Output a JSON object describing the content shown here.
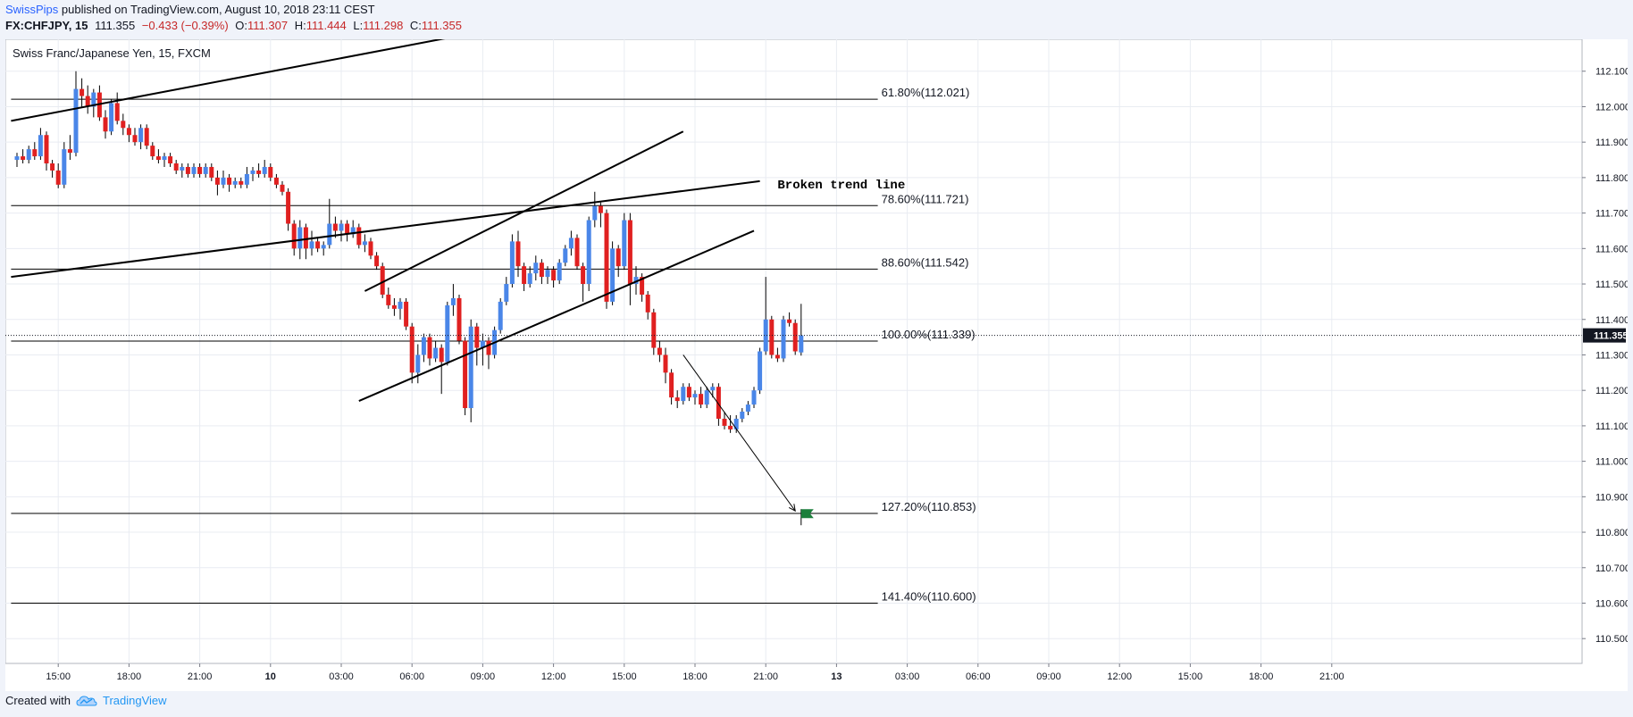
{
  "header": {
    "author": "SwissPips",
    "published": "published on TradingView.com, August 10, 2018 23:11 CEST",
    "ticker": "FX:CHFJPY, 15",
    "last": "111.355",
    "change": "−0.433 (−0.39%)",
    "o_label": "O:",
    "o_value": "111.307",
    "h_label": "H:",
    "h_value": "111.444",
    "l_label": "L:",
    "l_value": "111.298",
    "c_label": "C:",
    "c_value": "111.355"
  },
  "footer": {
    "created_with": "Created with",
    "brand": "TradingView",
    "logo_icon": "tradingview-cloud-icon"
  },
  "colors": {
    "up": "#4a86e8",
    "down": "#e02020",
    "grid": "#e9ecf2",
    "line": "#000000",
    "flag": "#1b7f3b",
    "price_tag": "#131722"
  },
  "chart_data": {
    "type": "candlestick",
    "title": "Swiss Franc/Japanese Yen, 15, FXCM",
    "xlabel": "",
    "ylabel": "",
    "y_range": [
      110.43,
      112.19
    ],
    "y_ticks": [
      "112.100",
      "112.000",
      "111.900",
      "111.800",
      "111.700",
      "111.600",
      "111.500",
      "111.400",
      "111.300",
      "111.200",
      "111.100",
      "111.000",
      "110.900",
      "110.800",
      "110.700",
      "110.600",
      "110.500"
    ],
    "x_ticks": [
      {
        "label": "15:00",
        "slot": 7
      },
      {
        "label": "18:00",
        "slot": 19
      },
      {
        "label": "21:00",
        "slot": 31
      },
      {
        "label": "10",
        "slot": 43
      },
      {
        "label": "03:00",
        "slot": 55
      },
      {
        "label": "06:00",
        "slot": 67
      },
      {
        "label": "09:00",
        "slot": 79
      },
      {
        "label": "12:00",
        "slot": 91
      },
      {
        "label": "15:00",
        "slot": 103
      },
      {
        "label": "18:00",
        "slot": 115
      },
      {
        "label": "21:00",
        "slot": 127
      },
      {
        "label": "13",
        "slot": 139
      },
      {
        "label": "03:00",
        "slot": 151
      },
      {
        "label": "06:00",
        "slot": 163
      },
      {
        "label": "09:00",
        "slot": 175
      },
      {
        "label": "12:00",
        "slot": 187
      },
      {
        "label": "15:00",
        "slot": 199
      },
      {
        "label": "18:00",
        "slot": 211
      },
      {
        "label": "21:00",
        "slot": 223
      }
    ],
    "last_price": "111.355",
    "candles": [
      [
        111.85,
        111.87,
        111.83,
        111.86
      ],
      [
        111.86,
        111.88,
        111.84,
        111.85
      ],
      [
        111.85,
        111.89,
        111.84,
        111.88
      ],
      [
        111.88,
        111.9,
        111.85,
        111.86
      ],
      [
        111.86,
        111.94,
        111.85,
        111.92
      ],
      [
        111.92,
        111.93,
        111.82,
        111.84
      ],
      [
        111.84,
        111.85,
        111.8,
        111.82
      ],
      [
        111.82,
        111.84,
        111.77,
        111.78
      ],
      [
        111.78,
        111.9,
        111.77,
        111.88
      ],
      [
        111.88,
        111.92,
        111.85,
        111.87
      ],
      [
        111.87,
        112.1,
        111.86,
        112.05
      ],
      [
        112.05,
        112.08,
        112.0,
        112.03
      ],
      [
        112.03,
        112.06,
        111.98,
        112.0
      ],
      [
        112.0,
        112.05,
        111.97,
        112.04
      ],
      [
        112.04,
        112.06,
        111.96,
        111.97
      ],
      [
        111.97,
        111.99,
        111.91,
        111.93
      ],
      [
        111.93,
        112.02,
        111.92,
        112.01
      ],
      [
        112.01,
        112.04,
        111.95,
        111.96
      ],
      [
        111.96,
        111.98,
        111.92,
        111.94
      ],
      [
        111.94,
        111.95,
        111.9,
        111.92
      ],
      [
        111.92,
        111.94,
        111.89,
        111.9
      ],
      [
        111.9,
        111.95,
        111.88,
        111.94
      ],
      [
        111.94,
        111.95,
        111.88,
        111.89
      ],
      [
        111.89,
        111.9,
        111.85,
        111.86
      ],
      [
        111.86,
        111.88,
        111.84,
        111.85
      ],
      [
        111.85,
        111.87,
        111.83,
        111.86
      ],
      [
        111.86,
        111.87,
        111.83,
        111.84
      ],
      [
        111.84,
        111.85,
        111.81,
        111.82
      ],
      [
        111.82,
        111.84,
        111.8,
        111.83
      ],
      [
        111.83,
        111.84,
        111.8,
        111.81
      ],
      [
        111.81,
        111.84,
        111.8,
        111.83
      ],
      [
        111.83,
        111.84,
        111.8,
        111.81
      ],
      [
        111.81,
        111.84,
        111.8,
        111.83
      ],
      [
        111.83,
        111.84,
        111.79,
        111.8
      ],
      [
        111.8,
        111.82,
        111.75,
        111.78
      ],
      [
        111.78,
        111.82,
        111.77,
        111.8
      ],
      [
        111.8,
        111.81,
        111.76,
        111.78
      ],
      [
        111.78,
        111.8,
        111.77,
        111.79
      ],
      [
        111.79,
        111.8,
        111.77,
        111.78
      ],
      [
        111.78,
        111.83,
        111.77,
        111.81
      ],
      [
        111.81,
        111.83,
        111.79,
        111.82
      ],
      [
        111.82,
        111.84,
        111.8,
        111.81
      ],
      [
        111.81,
        111.85,
        111.8,
        111.83
      ],
      [
        111.83,
        111.84,
        111.79,
        111.8
      ],
      [
        111.8,
        111.81,
        111.77,
        111.78
      ],
      [
        111.78,
        111.79,
        111.75,
        111.76
      ],
      [
        111.76,
        111.77,
        111.65,
        111.67
      ],
      [
        111.67,
        111.68,
        111.58,
        111.6
      ],
      [
        111.6,
        111.68,
        111.57,
        111.66
      ],
      [
        111.66,
        111.67,
        111.57,
        111.6
      ],
      [
        111.6,
        111.65,
        111.58,
        111.62
      ],
      [
        111.62,
        111.63,
        111.59,
        111.6
      ],
      [
        111.6,
        111.62,
        111.58,
        111.61
      ],
      [
        111.61,
        111.74,
        111.6,
        111.67
      ],
      [
        111.67,
        111.69,
        111.63,
        111.65
      ],
      [
        111.65,
        111.68,
        111.62,
        111.67
      ],
      [
        111.67,
        111.68,
        111.62,
        111.64
      ],
      [
        111.64,
        111.68,
        111.63,
        111.66
      ],
      [
        111.66,
        111.67,
        111.6,
        111.61
      ],
      [
        111.61,
        111.64,
        111.59,
        111.62
      ],
      [
        111.62,
        111.63,
        111.57,
        111.58
      ],
      [
        111.58,
        111.59,
        111.54,
        111.55
      ],
      [
        111.55,
        111.56,
        111.46,
        111.47
      ],
      [
        111.47,
        111.49,
        111.43,
        111.44
      ],
      [
        111.44,
        111.46,
        111.41,
        111.43
      ],
      [
        111.43,
        111.46,
        111.4,
        111.45
      ],
      [
        111.45,
        111.46,
        111.37,
        111.38
      ],
      [
        111.38,
        111.39,
        111.22,
        111.25
      ],
      [
        111.25,
        111.33,
        111.22,
        111.3
      ],
      [
        111.3,
        111.36,
        111.28,
        111.35
      ],
      [
        111.35,
        111.36,
        111.27,
        111.29
      ],
      [
        111.29,
        111.34,
        111.28,
        111.32
      ],
      [
        111.32,
        111.33,
        111.19,
        111.28
      ],
      [
        111.28,
        111.45,
        111.27,
        111.44
      ],
      [
        111.44,
        111.5,
        111.41,
        111.46
      ],
      [
        111.46,
        111.47,
        111.33,
        111.34
      ],
      [
        111.34,
        111.35,
        111.13,
        111.15
      ],
      [
        111.15,
        111.4,
        111.11,
        111.38
      ],
      [
        111.38,
        111.39,
        111.27,
        111.32
      ],
      [
        111.32,
        111.36,
        111.27,
        111.34
      ],
      [
        111.34,
        111.35,
        111.26,
        111.3
      ],
      [
        111.3,
        111.38,
        111.29,
        111.37
      ],
      [
        111.37,
        111.46,
        111.36,
        111.45
      ],
      [
        111.45,
        111.52,
        111.44,
        111.5
      ],
      [
        111.5,
        111.64,
        111.49,
        111.62
      ],
      [
        111.62,
        111.65,
        111.52,
        111.55
      ],
      [
        111.55,
        111.56,
        111.48,
        111.5
      ],
      [
        111.5,
        111.55,
        111.49,
        111.53
      ],
      [
        111.53,
        111.58,
        111.51,
        111.56
      ],
      [
        111.56,
        111.57,
        111.5,
        111.52
      ],
      [
        111.52,
        111.55,
        111.5,
        111.54
      ],
      [
        111.54,
        111.55,
        111.49,
        111.51
      ],
      [
        111.51,
        111.57,
        111.5,
        111.56
      ],
      [
        111.56,
        111.61,
        111.55,
        111.6
      ],
      [
        111.6,
        111.65,
        111.58,
        111.63
      ],
      [
        111.63,
        111.64,
        111.54,
        111.55
      ],
      [
        111.55,
        111.56,
        111.45,
        111.5
      ],
      [
        111.5,
        111.69,
        111.48,
        111.68
      ],
      [
        111.68,
        111.76,
        111.66,
        111.72
      ],
      [
        111.72,
        111.73,
        111.66,
        111.7
      ],
      [
        111.7,
        111.71,
        111.43,
        111.45
      ],
      [
        111.45,
        111.62,
        111.44,
        111.6
      ],
      [
        111.6,
        111.61,
        111.52,
        111.55
      ],
      [
        111.55,
        111.7,
        111.54,
        111.68
      ],
      [
        111.68,
        111.7,
        111.44,
        111.5
      ],
      [
        111.5,
        111.55,
        111.47,
        111.52
      ],
      [
        111.52,
        111.53,
        111.45,
        111.47
      ],
      [
        111.47,
        111.48,
        111.4,
        111.42
      ],
      [
        111.42,
        111.43,
        111.3,
        111.32
      ],
      [
        111.32,
        111.34,
        111.28,
        111.3
      ],
      [
        111.3,
        111.32,
        111.22,
        111.25
      ],
      [
        111.25,
        111.26,
        111.16,
        111.18
      ],
      [
        111.18,
        111.2,
        111.15,
        111.17
      ],
      [
        111.17,
        111.22,
        111.16,
        111.21
      ],
      [
        111.21,
        111.22,
        111.17,
        111.18
      ],
      [
        111.18,
        111.2,
        111.16,
        111.19
      ],
      [
        111.19,
        111.21,
        111.15,
        111.16
      ],
      [
        111.16,
        111.21,
        111.15,
        111.2
      ],
      [
        111.2,
        111.22,
        111.18,
        111.21
      ],
      [
        111.21,
        111.22,
        111.1,
        111.12
      ],
      [
        111.12,
        111.14,
        111.09,
        111.1
      ],
      [
        111.1,
        111.13,
        111.08,
        111.09
      ],
      [
        111.09,
        111.13,
        111.08,
        111.12
      ],
      [
        111.12,
        111.15,
        111.11,
        111.14
      ],
      [
        111.14,
        111.17,
        111.13,
        111.16
      ],
      [
        111.16,
        111.21,
        111.15,
        111.2
      ],
      [
        111.2,
        111.32,
        111.19,
        111.31
      ],
      [
        111.31,
        111.52,
        111.3,
        111.4
      ],
      [
        111.4,
        111.41,
        111.29,
        111.3
      ],
      [
        111.3,
        111.32,
        111.28,
        111.29
      ],
      [
        111.29,
        111.41,
        111.28,
        111.4
      ],
      [
        111.4,
        111.42,
        111.38,
        111.39
      ],
      [
        111.39,
        111.4,
        111.3,
        111.31
      ],
      [
        111.307,
        111.444,
        111.298,
        111.355
      ]
    ],
    "lines": [
      {
        "p1": [
          -1,
          111.96
        ],
        "p2": [
          75,
          112.2
        ]
      },
      {
        "p1": [
          -1,
          111.52
        ],
        "p2": [
          126,
          111.79
        ]
      },
      {
        "p1": [
          58,
          111.17
        ],
        "p2": [
          125,
          111.65
        ]
      },
      {
        "p1": [
          59,
          111.48
        ],
        "p2": [
          113,
          111.93
        ]
      }
    ],
    "fib_levels": [
      {
        "label": "61.80%(112.021)",
        "price": 112.021,
        "start_slot": -1
      },
      {
        "label": "78.60%(111.721)",
        "price": 111.721,
        "start_slot": -1
      },
      {
        "label": "88.60%(111.542)",
        "price": 111.542,
        "start_slot": -1
      },
      {
        "label": "100.00%(111.339)",
        "price": 111.339,
        "start_slot": -1
      },
      {
        "label": "127.20%(110.853)",
        "price": 110.853,
        "start_slot": -1
      },
      {
        "label": "141.40%(110.600)",
        "price": 110.6,
        "start_slot": -1
      }
    ],
    "fib_end_slot": 146,
    "annotation": {
      "text": "Broken trend line",
      "slot": 129,
      "price": 111.78
    },
    "arrow": {
      "from": [
        113,
        111.3
      ],
      "to": [
        132,
        110.86
      ]
    },
    "flag": {
      "slot": 133,
      "price": 110.86,
      "icon": "flag-icon"
    }
  }
}
